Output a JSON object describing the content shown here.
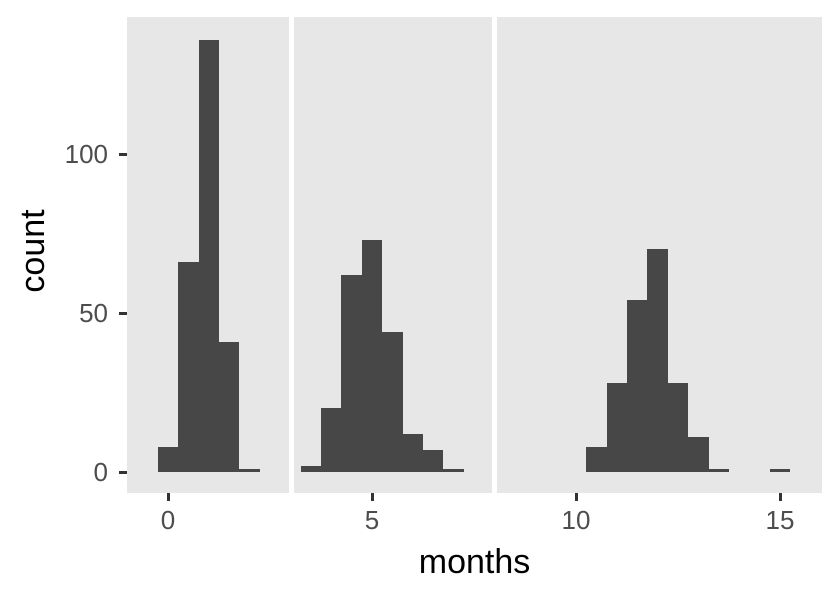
{
  "chart_data": {
    "type": "histogram",
    "xlabel": "months",
    "ylabel": "count",
    "binwidth_months": 0.5,
    "grid": false,
    "legend": "none",
    "y_axis": {
      "ticks": [
        0,
        50,
        100
      ],
      "range": [
        -6.6,
        143.1
      ]
    },
    "facets": [
      {
        "xlim": [
          -1.0,
          2.97
        ],
        "x_ticks": [
          0
        ],
        "bars": [
          {
            "month": 0.0,
            "count": 8
          },
          {
            "month": 0.5,
            "count": 66
          },
          {
            "month": 1.0,
            "count": 136
          },
          {
            "month": 1.5,
            "count": 41
          },
          {
            "month": 2.0,
            "count": 1
          }
        ]
      },
      {
        "xlim": [
          3.09,
          7.94
        ],
        "x_ticks": [
          5
        ],
        "bars": [
          {
            "month": 3.5,
            "count": 2
          },
          {
            "month": 4.0,
            "count": 20
          },
          {
            "month": 4.5,
            "count": 62
          },
          {
            "month": 5.0,
            "count": 73
          },
          {
            "month": 5.5,
            "count": 44
          },
          {
            "month": 6.0,
            "count": 12
          },
          {
            "month": 6.5,
            "count": 7
          },
          {
            "month": 7.0,
            "count": 1
          }
        ]
      },
      {
        "xlim": [
          8.06,
          16.03
        ],
        "x_ticks": [
          10,
          15
        ],
        "bars": [
          {
            "month": 10.5,
            "count": 8
          },
          {
            "month": 11.0,
            "count": 28
          },
          {
            "month": 11.5,
            "count": 54
          },
          {
            "month": 12.0,
            "count": 70
          },
          {
            "month": 12.5,
            "count": 28
          },
          {
            "month": 13.0,
            "count": 11
          },
          {
            "month": 13.5,
            "count": 1
          },
          {
            "month": 15.0,
            "count": 1
          }
        ]
      }
    ],
    "colors": {
      "bar": "#474747",
      "panel_background": "#E7E7E7",
      "page_background": "#FFFFFF",
      "tick_mark": "#333333",
      "tick_label": "#4D4D4D",
      "axis_title": "#000000"
    }
  }
}
